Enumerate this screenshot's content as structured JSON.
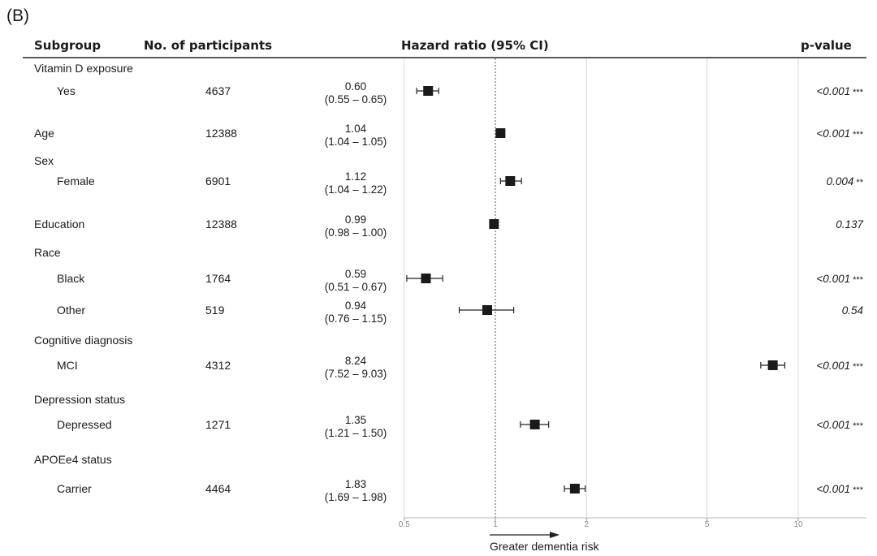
{
  "panel_label": "(B)",
  "headers": {
    "subgroup": "Subgroup",
    "participants": "No. of participants",
    "hr": "Hazard ratio (95% CI)",
    "pvalue": "p-value"
  },
  "x_note": "Greater dementia risk",
  "chart_data": {
    "type": "forest",
    "xscale": "log",
    "xlim": [
      0.5,
      14
    ],
    "xticks": [
      0.5,
      1,
      2,
      5,
      10
    ],
    "xtick_labels": [
      "0.5",
      "1",
      "2",
      "5",
      "10"
    ],
    "reference_line": 1,
    "rows": [
      {
        "label": "Vitamin D exposure",
        "indent": 0
      },
      {
        "label": "Yes",
        "indent": 1,
        "n": "4637",
        "hr": 0.6,
        "lo": 0.55,
        "hi": 0.65,
        "hr_text": "0.60",
        "ci_text": "(0.55 – 0.65)",
        "p": "<0.001",
        "stars": "***"
      },
      {
        "label": "Age",
        "indent": 0,
        "n": "12388",
        "hr": 1.04,
        "lo": 1.04,
        "hi": 1.05,
        "hr_text": "1.04",
        "ci_text": "(1.04 – 1.05)",
        "p": "<0.001",
        "stars": "***"
      },
      {
        "label": "Sex",
        "indent": 0
      },
      {
        "label": "Female",
        "indent": 1,
        "n": "6901",
        "hr": 1.12,
        "lo": 1.04,
        "hi": 1.22,
        "hr_text": "1.12",
        "ci_text": "(1.04 – 1.22)",
        "p": "0.004",
        "stars": "**"
      },
      {
        "label": "Education",
        "indent": 0,
        "n": "12388",
        "hr": 0.99,
        "lo": 0.98,
        "hi": 1.0,
        "hr_text": "0.99",
        "ci_text": "(0.98 – 1.00)",
        "p": "0.137",
        "stars": ""
      },
      {
        "label": "Race",
        "indent": 0
      },
      {
        "label": "Black",
        "indent": 1,
        "n": "1764",
        "hr": 0.59,
        "lo": 0.51,
        "hi": 0.67,
        "hr_text": "0.59",
        "ci_text": "(0.51 – 0.67)",
        "p": "<0.001",
        "stars": "***"
      },
      {
        "label": "Other",
        "indent": 1,
        "n": "519",
        "hr": 0.94,
        "lo": 0.76,
        "hi": 1.15,
        "hr_text": "0.94",
        "ci_text": "(0.76 – 1.15)",
        "p": "0.54",
        "stars": ""
      },
      {
        "label": "Cognitive diagnosis",
        "indent": 0
      },
      {
        "label": "MCI",
        "indent": 1,
        "n": "4312",
        "hr": 8.24,
        "lo": 7.52,
        "hi": 9.03,
        "hr_text": "8.24",
        "ci_text": "(7.52 – 9.03)",
        "p": "<0.001",
        "stars": "***"
      },
      {
        "label": "Depression status",
        "indent": 0
      },
      {
        "label": "Depressed",
        "indent": 1,
        "n": "1271",
        "hr": 1.35,
        "lo": 1.21,
        "hi": 1.5,
        "hr_text": "1.35",
        "ci_text": "(1.21 – 1.50)",
        "p": "<0.001",
        "stars": "***"
      },
      {
        "label": "APOEe4 status",
        "indent": 0
      },
      {
        "label": "Carrier",
        "indent": 1,
        "n": "4464",
        "hr": 1.83,
        "lo": 1.69,
        "hi": 1.98,
        "hr_text": "1.83",
        "ci_text": "(1.69 – 1.98)",
        "p": "<0.001",
        "stars": "***"
      }
    ]
  }
}
